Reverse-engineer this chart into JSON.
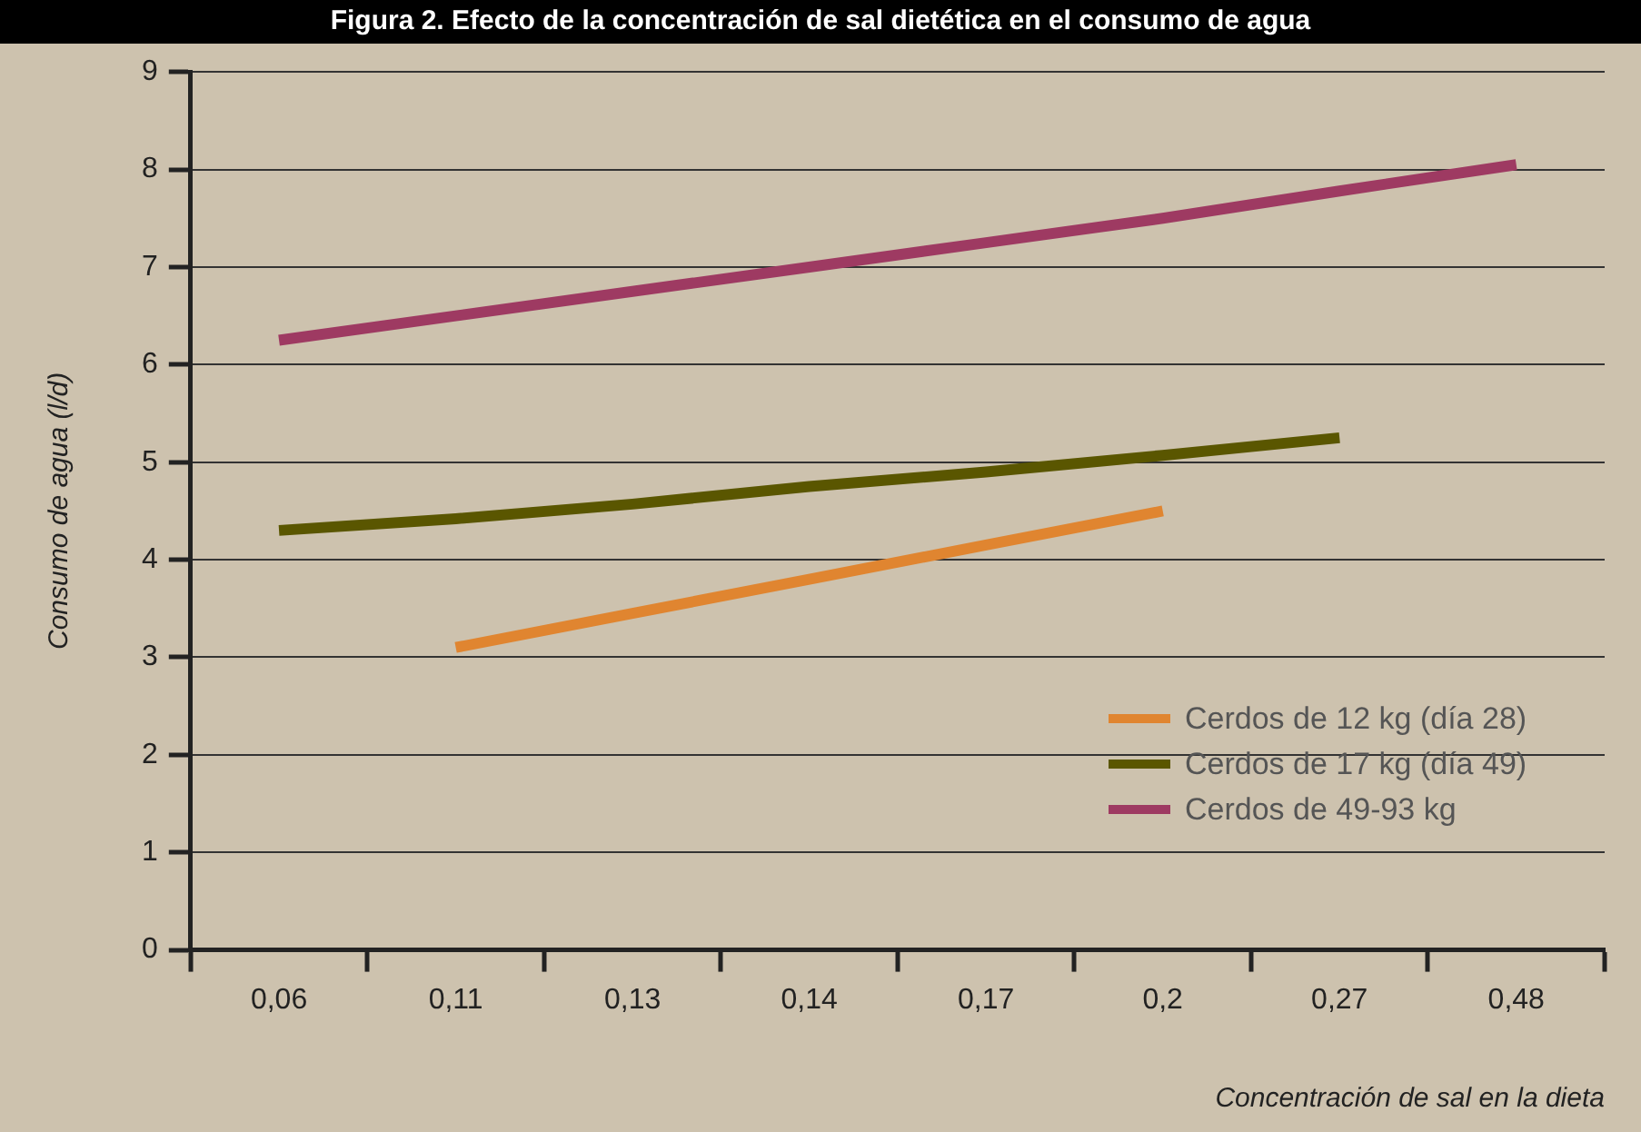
{
  "chart_data": {
    "type": "line",
    "title": "Figura 2. Efecto de la concentración de sal dietética en el consumo de agua",
    "xlabel": "Concentración de sal en la dieta",
    "ylabel": "Consumo de agua (l/d)",
    "categories": [
      "0,06",
      "0,11",
      "0,13",
      "0,14",
      "0,17",
      "0,2",
      "0,27",
      "0,48"
    ],
    "series": [
      {
        "name": "Cerdos de 12 kg (día 28)",
        "color": "#e08530",
        "values": [
          null,
          3.1,
          3.45,
          3.8,
          4.15,
          4.5,
          null,
          null
        ]
      },
      {
        "name": "Cerdos de 17 kg (día 49)",
        "color": "#5a5600",
        "values": [
          4.3,
          4.42,
          4.57,
          4.75,
          4.9,
          5.07,
          5.25,
          null
        ]
      },
      {
        "name": "Cerdos de 49-93 kg",
        "color": "#9e3a62",
        "values": [
          6.25,
          6.5,
          6.75,
          7.0,
          7.25,
          7.5,
          7.78,
          8.05
        ]
      }
    ],
    "ylim": [
      0,
      9
    ],
    "yticks": [
      0,
      1,
      2,
      3,
      4,
      5,
      6,
      7,
      8,
      9
    ],
    "grid": "y",
    "legend": "bottom right",
    "marker": "none",
    "line_style": "solid"
  }
}
